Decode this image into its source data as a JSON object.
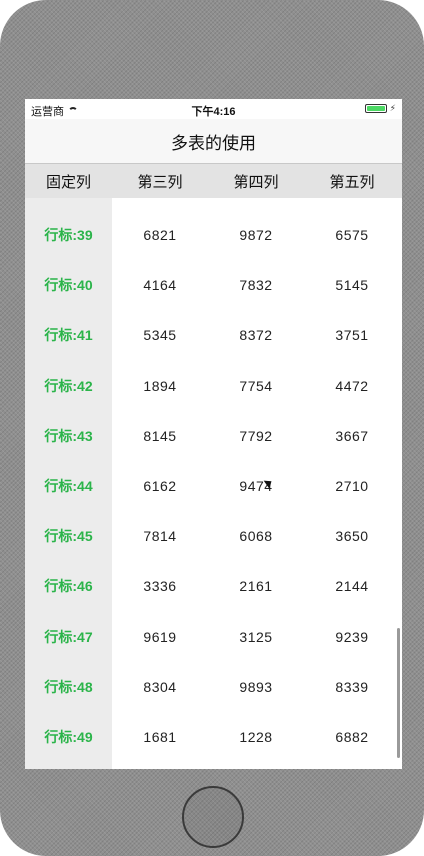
{
  "status_bar": {
    "carrier": "运营商",
    "wifi_icon": "wifi-icon",
    "time": "下午4:16",
    "battery_icon": "battery-icon",
    "charge_icon": "⚡"
  },
  "nav": {
    "title": "多表的使用"
  },
  "header": {
    "fixed": "固定列",
    "col2": "第三列",
    "col3": "第四列",
    "col4": "第五列"
  },
  "rows": [
    {
      "label": "行标:39",
      "c1": "6821",
      "c2": "9872",
      "c3": "6575"
    },
    {
      "label": "行标:40",
      "c1": "4164",
      "c2": "7832",
      "c3": "5145"
    },
    {
      "label": "行标:41",
      "c1": "5345",
      "c2": "8372",
      "c3": "3751"
    },
    {
      "label": "行标:42",
      "c1": "1894",
      "c2": "7754",
      "c3": "4472"
    },
    {
      "label": "行标:43",
      "c1": "8145",
      "c2": "7792",
      "c3": "3667"
    },
    {
      "label": "行标:44",
      "c1": "6162",
      "c2": "9474",
      "c3": "2710"
    },
    {
      "label": "行标:45",
      "c1": "7814",
      "c2": "6068",
      "c3": "3650"
    },
    {
      "label": "行标:46",
      "c1": "3336",
      "c2": "2161",
      "c3": "2144"
    },
    {
      "label": "行标:47",
      "c1": "9619",
      "c2": "3125",
      "c3": "9239"
    },
    {
      "label": "行标:48",
      "c1": "8304",
      "c2": "9893",
      "c3": "8339"
    },
    {
      "label": "行标:49",
      "c1": "1681",
      "c2": "1228",
      "c3": "6882"
    }
  ]
}
